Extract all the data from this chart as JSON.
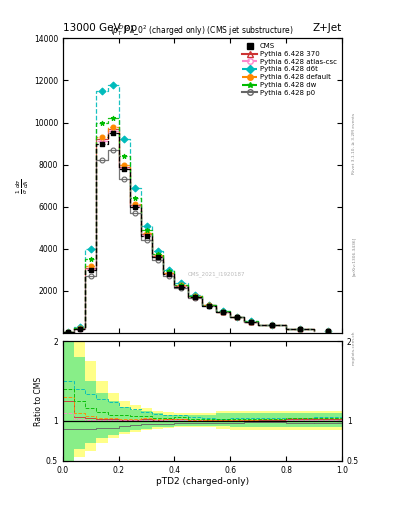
{
  "title_left": "13000 GeV pp",
  "title_right": "Z+Jet",
  "subtitle": "$(p_T^D)^2\\lambda\\_0^2$ (charged only) (CMS jet substructure)",
  "xlabel": "pTD2 (charged-only)",
  "watermark": "CMS_2021_I1920187",
  "rivet_version": "Rivet 3.1.10, ≥ 3.2M events",
  "arxiv": "[arXiv:1306.3436]",
  "mcplots": "mcplots.cern.ch",
  "xlim": [
    0,
    1
  ],
  "ylim": [
    0,
    14000
  ],
  "ratio_ylim": [
    0.5,
    2.0
  ],
  "bin_edges": [
    0.0,
    0.04,
    0.08,
    0.12,
    0.16,
    0.2,
    0.24,
    0.28,
    0.32,
    0.36,
    0.4,
    0.45,
    0.5,
    0.55,
    0.6,
    0.65,
    0.7,
    0.8,
    0.9,
    1.0
  ],
  "cms_values": [
    20,
    200,
    3000,
    9000,
    9500,
    7800,
    6000,
    4600,
    3600,
    2800,
    2200,
    1700,
    1300,
    1000,
    750,
    530,
    380,
    190,
    80
  ],
  "p6_370_values": [
    25,
    210,
    3100,
    9200,
    9700,
    7900,
    6100,
    4700,
    3650,
    2850,
    2250,
    1720,
    1310,
    1010,
    760,
    535,
    385,
    195,
    82
  ],
  "p6_atlascsc_values": [
    22,
    205,
    3050,
    9100,
    9600,
    7850,
    6050,
    4650,
    3620,
    2820,
    2220,
    1710,
    1305,
    1005,
    755,
    532,
    382,
    192,
    81
  ],
  "p6_d6t_values": [
    30,
    280,
    4000,
    11500,
    11800,
    9200,
    6900,
    5100,
    3900,
    3000,
    2350,
    1780,
    1340,
    1030,
    775,
    548,
    393,
    198,
    84
  ],
  "p6_default_values": [
    26,
    220,
    3200,
    9300,
    9800,
    8000,
    6150,
    4750,
    3680,
    2870,
    2260,
    1730,
    1315,
    1015,
    762,
    538,
    387,
    196,
    83
  ],
  "p6_dw_values": [
    28,
    250,
    3500,
    10000,
    10200,
    8400,
    6400,
    4900,
    3750,
    2920,
    2300,
    1750,
    1325,
    1020,
    768,
    542,
    390,
    197,
    83
  ],
  "p6_p0_values": [
    18,
    180,
    2700,
    8200,
    8700,
    7300,
    5700,
    4400,
    3450,
    2700,
    2130,
    1650,
    1270,
    980,
    735,
    520,
    373,
    185,
    78
  ],
  "cms_color": "#000000",
  "p6_370_color": "#cc3333",
  "p6_atlascsc_color": "#ff88cc",
  "p6_d6t_color": "#00bbbb",
  "p6_default_color": "#ff8800",
  "p6_dw_color": "#00bb00",
  "p6_p0_color": "#666666",
  "ratio_green_lo": [
    0.5,
    0.65,
    0.72,
    0.78,
    0.82,
    0.86,
    0.88,
    0.9,
    0.92,
    0.93,
    0.94,
    0.94,
    0.94,
    0.94,
    0.92,
    0.92,
    0.92,
    0.92,
    0.92
  ],
  "ratio_green_hi": [
    2.0,
    1.8,
    1.5,
    1.35,
    1.25,
    1.18,
    1.14,
    1.12,
    1.1,
    1.08,
    1.07,
    1.07,
    1.07,
    1.1,
    1.1,
    1.1,
    1.1,
    1.1,
    1.1
  ],
  "ratio_yellow_lo": [
    0.5,
    0.55,
    0.62,
    0.72,
    0.78,
    0.83,
    0.86,
    0.88,
    0.9,
    0.91,
    0.92,
    0.92,
    0.92,
    0.9,
    0.88,
    0.88,
    0.88,
    0.88,
    0.88
  ],
  "ratio_yellow_hi": [
    2.0,
    2.0,
    1.75,
    1.5,
    1.35,
    1.25,
    1.2,
    1.16,
    1.13,
    1.11,
    1.1,
    1.1,
    1.1,
    1.13,
    1.13,
    1.13,
    1.13,
    1.13,
    1.13
  ]
}
